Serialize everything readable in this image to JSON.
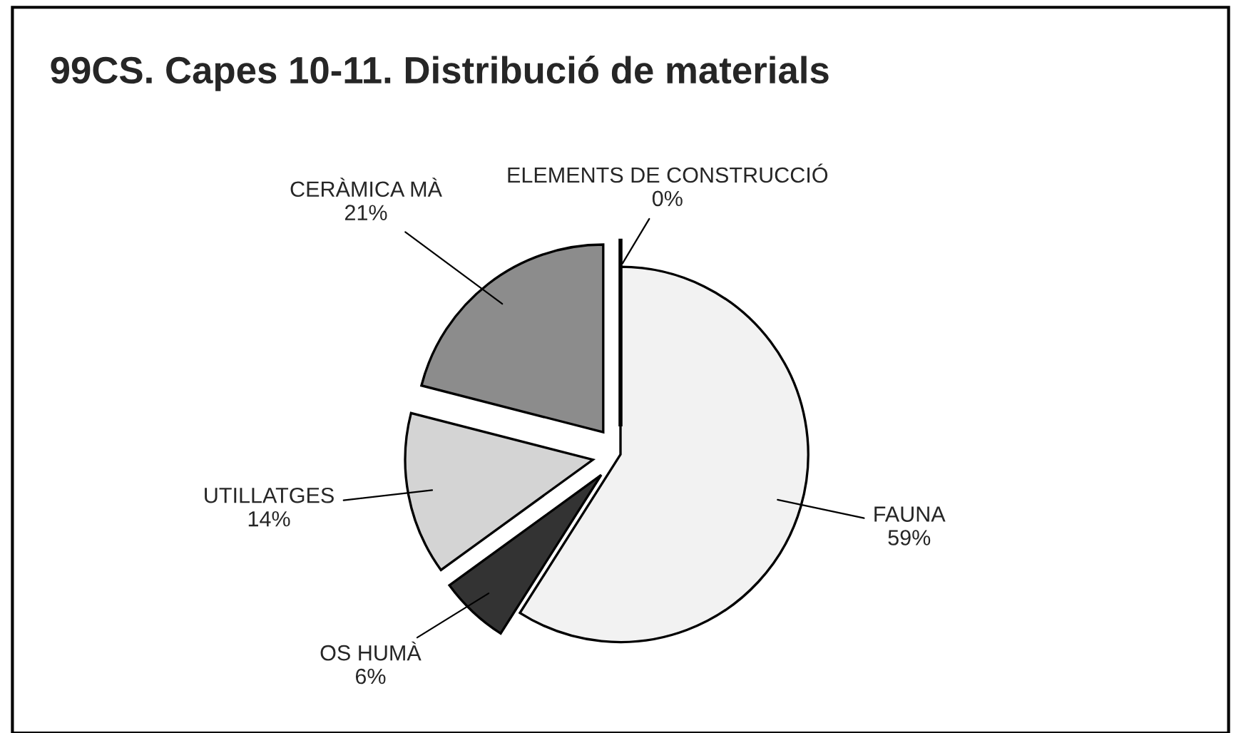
{
  "chart_data": {
    "type": "pie",
    "title": "99CS. Capes 10-11. Distribució de materials",
    "categories": [
      "FAUNA",
      "OS HUMÀ",
      "UTILLATGES",
      "CERÀMICA MÀ",
      "ELEMENTS DE CONSTRUCCIÓ"
    ],
    "values": [
      59,
      6,
      14,
      21,
      0
    ],
    "value_labels": [
      "59%",
      "6%",
      "14%",
      "21%",
      "0%"
    ],
    "colors": [
      "#f2f2f2",
      "#333333",
      "#d4d4d4",
      "#8c8c8c",
      "#000000"
    ],
    "legend": false
  }
}
